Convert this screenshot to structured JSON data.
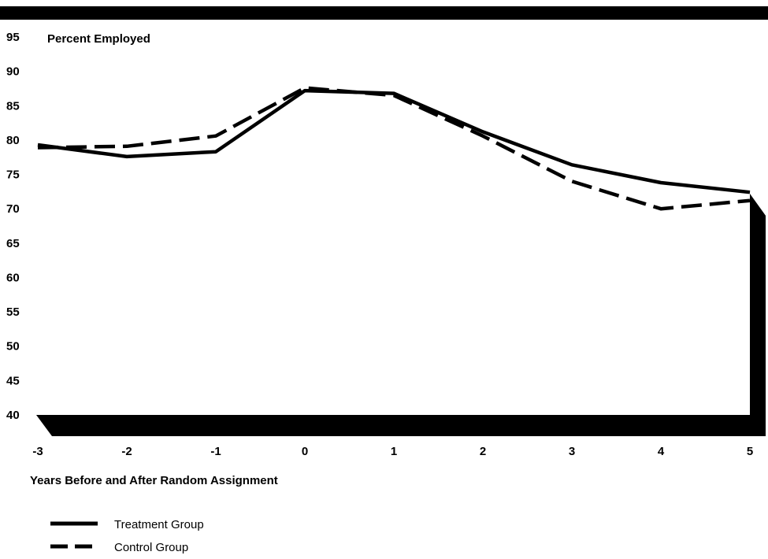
{
  "chart_data": {
    "type": "line",
    "ylabel": "Percent Employed",
    "xlabel": "Years Before and After Random Assignment",
    "x": [
      -3,
      -2,
      -1,
      0,
      1,
      2,
      3,
      4,
      5
    ],
    "x_tick_labels": [
      "-3",
      "-2",
      "-1",
      "0",
      "1",
      "2",
      "3",
      "4",
      "5"
    ],
    "y_tick_labels": [
      "95",
      "90",
      "85",
      "80",
      "75",
      "70",
      "65",
      "60",
      "55",
      "50",
      "45",
      "40"
    ],
    "ylim": [
      40,
      95
    ],
    "xlim": [
      -3,
      5
    ],
    "grid": false,
    "legend_position": "bottom-left",
    "series": [
      {
        "name": "Treatment Group",
        "style": "solid",
        "color": "#000000",
        "values": [
          79.3,
          77.6,
          78.3,
          87.2,
          86.8,
          81.2,
          76.4,
          73.8,
          72.4
        ]
      },
      {
        "name": "Control Group",
        "style": "dashed",
        "color": "#000000",
        "values": [
          78.9,
          79.1,
          80.6,
          87.6,
          86.5,
          80.6,
          74.0,
          70.0,
          71.2
        ]
      }
    ]
  }
}
